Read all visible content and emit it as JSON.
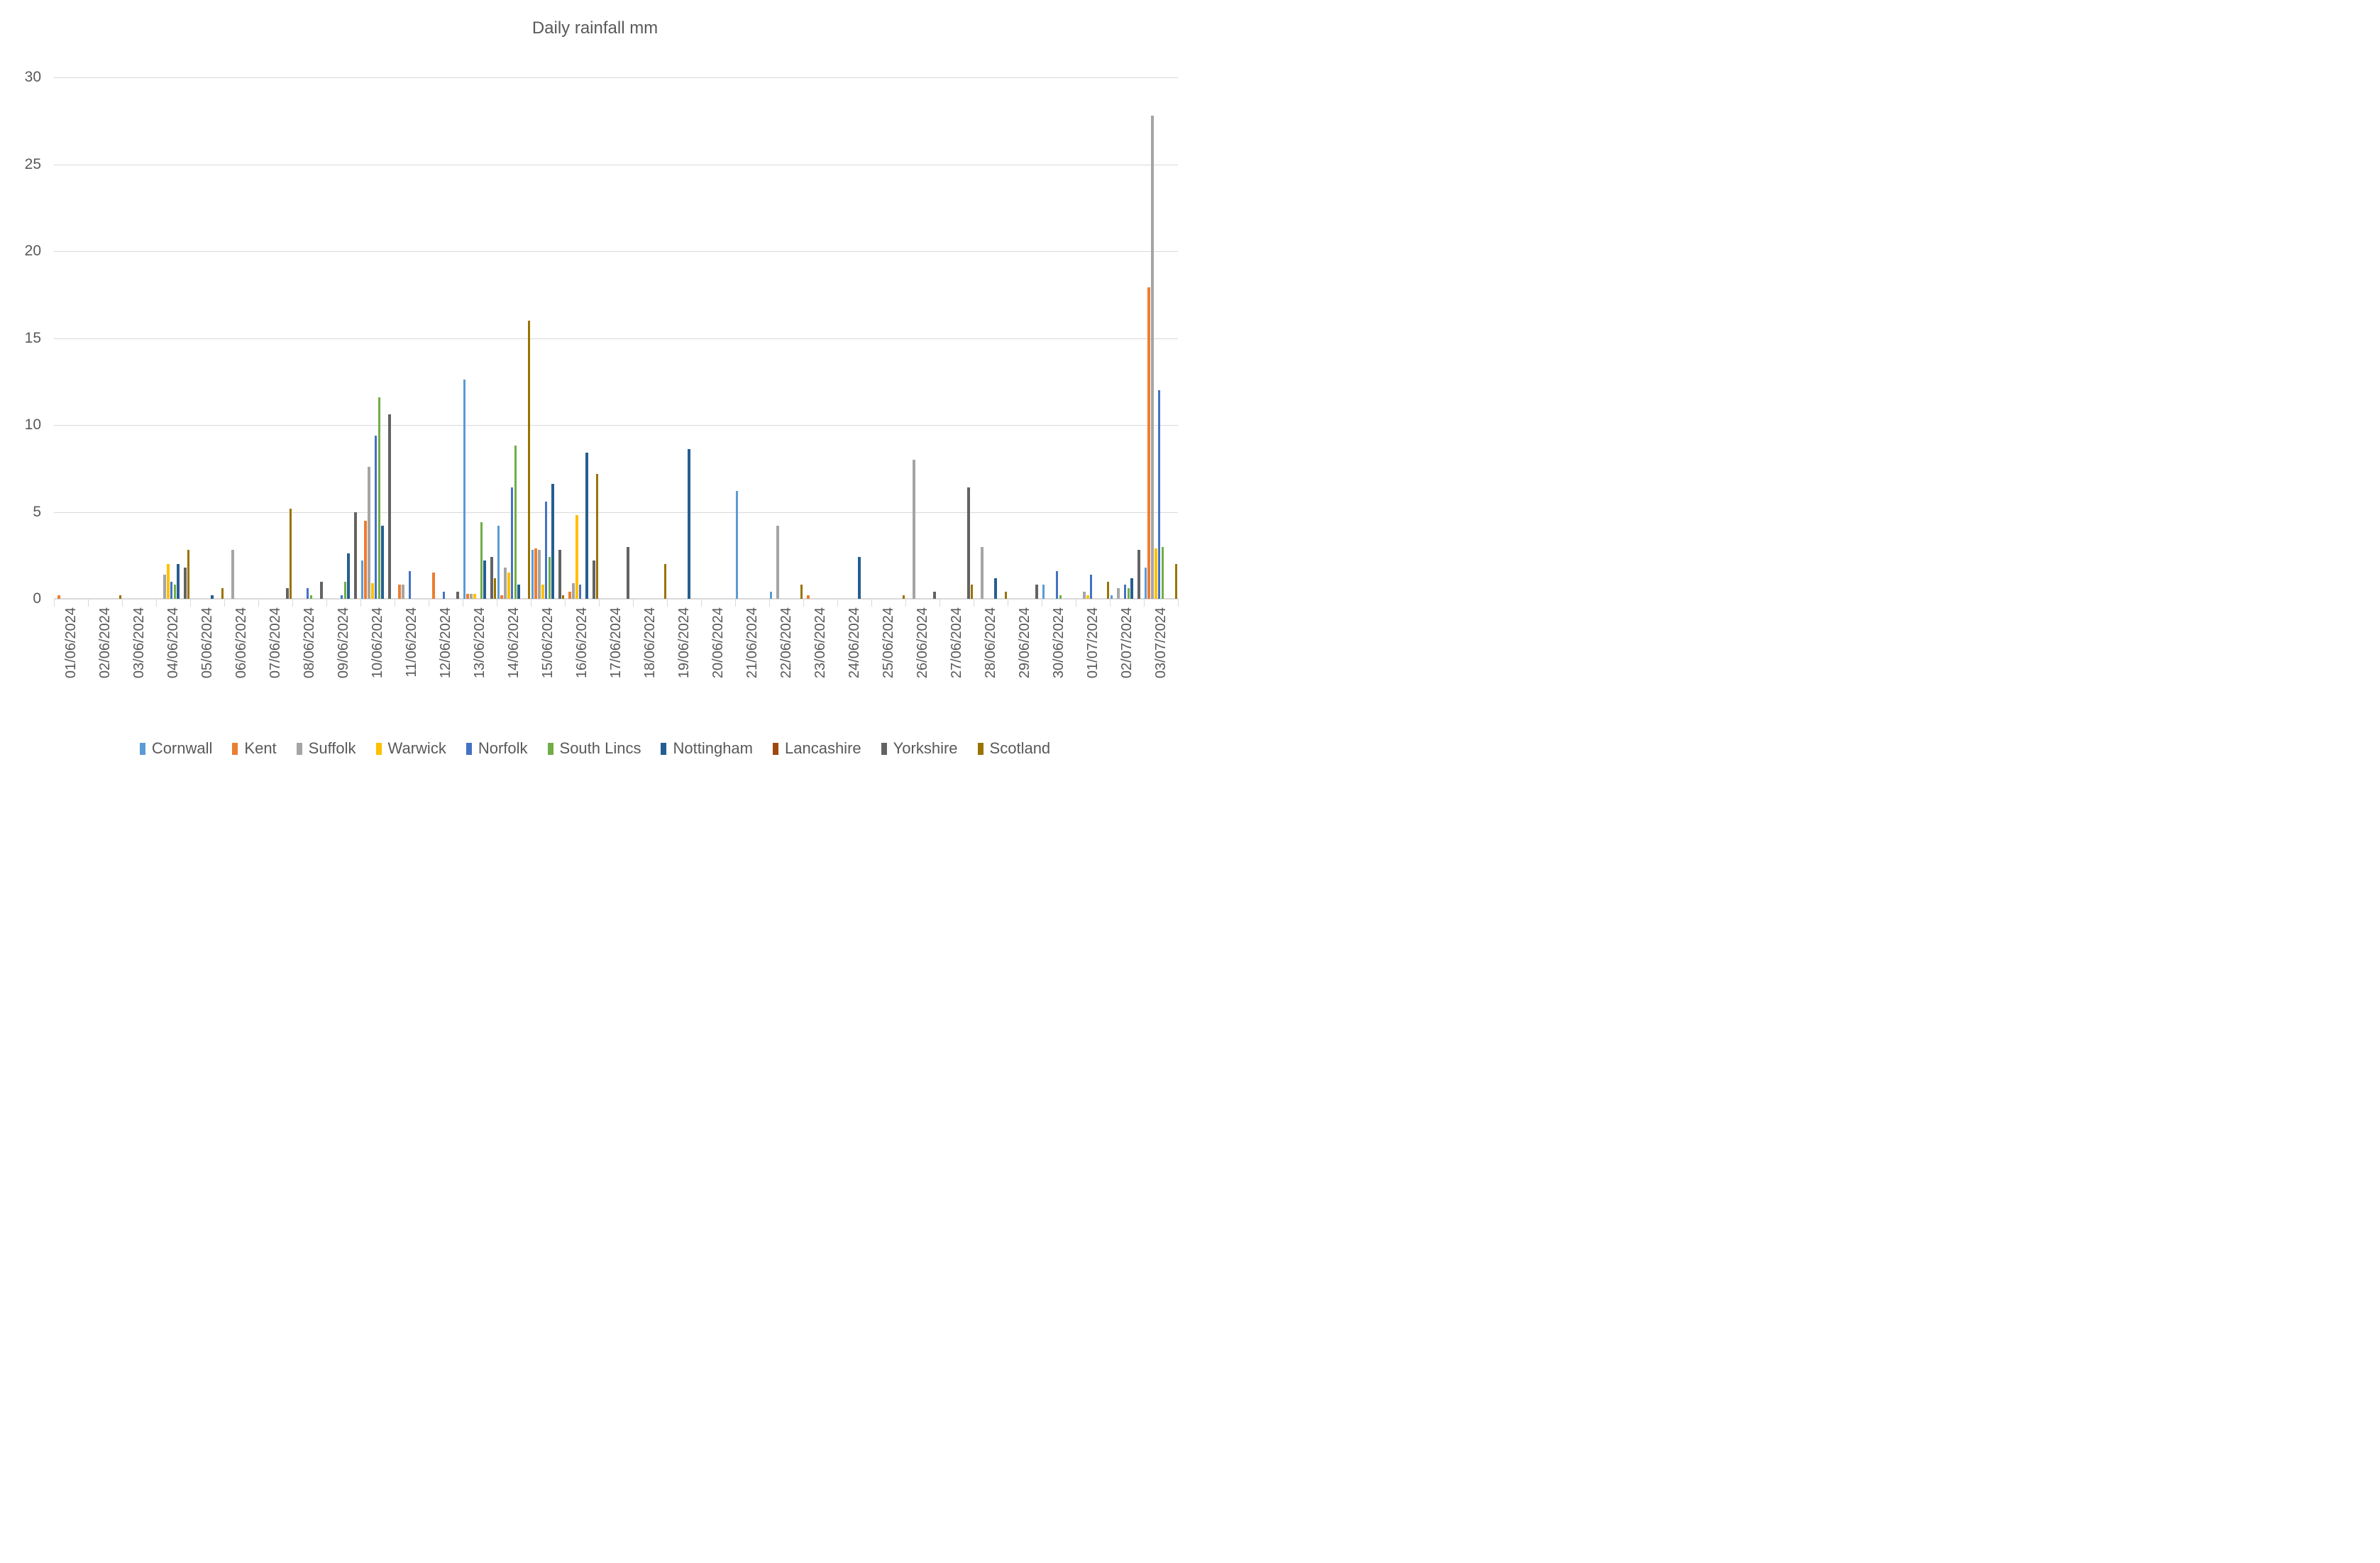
{
  "title": "Daily rainfall mm",
  "chart_data": {
    "type": "bar",
    "title": "Daily rainfall mm",
    "xlabel": "",
    "ylabel": "",
    "ylim": [
      0,
      30
    ],
    "yticks": [
      0,
      5,
      10,
      15,
      20,
      25,
      30
    ],
    "grid": true,
    "legend_position": "bottom",
    "background_color": "#ffffff",
    "gridline_color": "#d9d9d9",
    "text_color": "#595959",
    "categories": [
      "01/06/2024",
      "02/06/2024",
      "03/06/2024",
      "04/06/2024",
      "05/06/2024",
      "06/06/2024",
      "07/06/2024",
      "08/06/2024",
      "09/06/2024",
      "10/06/2024",
      "11/06/2024",
      "12/06/2024",
      "13/06/2024",
      "14/06/2024",
      "15/06/2024",
      "16/06/2024",
      "17/06/2024",
      "18/06/2024",
      "19/06/2024",
      "20/06/2024",
      "21/06/2024",
      "22/06/2024",
      "23/06/2024",
      "24/06/2024",
      "25/06/2024",
      "26/06/2024",
      "27/06/2024",
      "28/06/2024",
      "29/06/2024",
      "30/06/2024",
      "01/07/2024",
      "02/07/2024",
      "03/07/2024"
    ],
    "series": [
      {
        "name": "Cornwall",
        "color": "#5B9BD5",
        "values": [
          0,
          0,
          0,
          0,
          0,
          0,
          0,
          0,
          0,
          2.2,
          0,
          0,
          12.6,
          4.2,
          2.8,
          0,
          0,
          0,
          0,
          0,
          6.2,
          0.4,
          0,
          0,
          0,
          0,
          0,
          0,
          0,
          0.8,
          0,
          0.2,
          1.8
        ]
      },
      {
        "name": "Kent",
        "color": "#ED7D31",
        "values": [
          0.2,
          0,
          0,
          0,
          0,
          0,
          0,
          0,
          0,
          4.5,
          0.8,
          1.5,
          0.3,
          0.2,
          2.9,
          0.4,
          0,
          0,
          0,
          0,
          0,
          0,
          0.2,
          0,
          0,
          0,
          0,
          0,
          0,
          0,
          0,
          0,
          17.9
        ]
      },
      {
        "name": "Suffolk",
        "color": "#A5A5A5",
        "values": [
          0,
          0,
          0,
          1.4,
          0,
          2.8,
          0,
          0,
          0,
          7.6,
          0.8,
          0,
          0.3,
          1.8,
          2.8,
          0.9,
          0,
          0,
          0,
          0,
          0,
          4.2,
          0,
          0,
          0,
          8.0,
          0,
          3.0,
          0,
          0,
          0.4,
          0.6,
          27.8
        ]
      },
      {
        "name": "Warwick",
        "color": "#FFC000",
        "values": [
          0,
          0,
          0,
          2.0,
          0,
          0,
          0,
          0,
          0,
          0.9,
          0,
          0,
          0.3,
          1.5,
          0.8,
          4.8,
          0,
          0,
          0,
          0,
          0,
          0,
          0,
          0,
          0,
          0,
          0,
          0,
          0,
          0,
          0.2,
          0,
          2.9
        ]
      },
      {
        "name": "Norfolk",
        "color": "#4472C4",
        "values": [
          0,
          0,
          0,
          1.0,
          0,
          0,
          0,
          0.6,
          0.2,
          9.4,
          1.6,
          0.4,
          0,
          6.4,
          5.6,
          0.8,
          0,
          0,
          0,
          0,
          0,
          0,
          0,
          0,
          0,
          0,
          0,
          0,
          0,
          1.6,
          1.4,
          0.8,
          12.0
        ]
      },
      {
        "name": "South Lincs",
        "color": "#70AD47",
        "values": [
          0,
          0,
          0,
          0.8,
          0,
          0,
          0,
          0.2,
          1.0,
          11.6,
          0,
          0,
          4.4,
          8.8,
          2.4,
          0,
          0,
          0,
          0,
          0,
          0,
          0,
          0,
          0,
          0,
          0,
          0,
          0,
          0,
          0.2,
          0,
          0.6,
          3.0
        ]
      },
      {
        "name": "Nottingham",
        "color": "#255E91",
        "values": [
          0,
          0,
          0,
          2.0,
          0.2,
          0,
          0,
          0,
          2.6,
          4.2,
          0,
          0,
          2.2,
          0.8,
          6.6,
          8.4,
          0,
          0,
          8.6,
          0,
          0,
          0,
          0,
          2.4,
          0,
          0,
          0,
          1.2,
          0,
          0,
          0,
          1.2,
          0
        ]
      },
      {
        "name": "Lancashire",
        "color": "#9E480E",
        "values": [
          0,
          0,
          0,
          0,
          0,
          0,
          0,
          0,
          0,
          0,
          0,
          0,
          0,
          0,
          0,
          0,
          0,
          0,
          0,
          0,
          0,
          0,
          0,
          0,
          0,
          0,
          0,
          0,
          0,
          0,
          0,
          0,
          0
        ]
      },
      {
        "name": "Yorkshire",
        "color": "#636363",
        "values": [
          0,
          0,
          0,
          1.8,
          0,
          0,
          0.6,
          1.0,
          5.0,
          10.6,
          0,
          0.4,
          2.4,
          0,
          2.8,
          2.2,
          3.0,
          0,
          0,
          0,
          0,
          0,
          0,
          0,
          0,
          0.4,
          6.4,
          0,
          0.8,
          0,
          0,
          2.8,
          0
        ]
      },
      {
        "name": "Scotland",
        "color": "#997300",
        "values": [
          0,
          0.2,
          0,
          2.8,
          0.6,
          0,
          5.2,
          0,
          0,
          0,
          0,
          0,
          1.2,
          16.0,
          0.2,
          7.2,
          0,
          2.0,
          0,
          0,
          0,
          0.8,
          0,
          0,
          0.2,
          0,
          0.8,
          0.4,
          0,
          0,
          1.0,
          0,
          2.0
        ]
      }
    ]
  }
}
